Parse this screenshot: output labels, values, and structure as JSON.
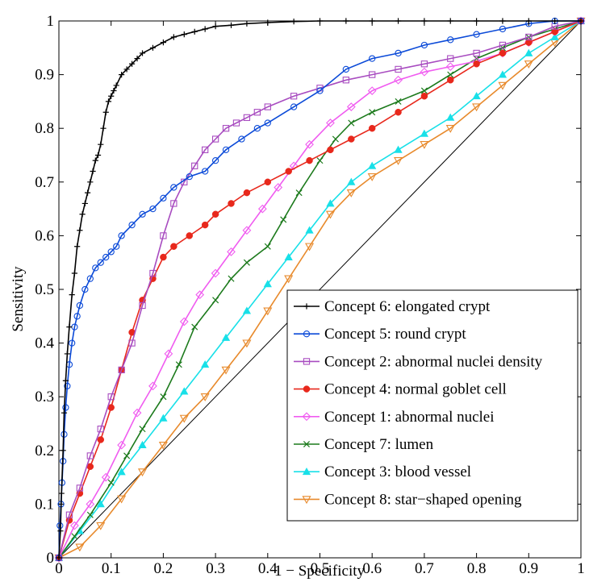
{
  "chart_data": {
    "type": "line",
    "title": "",
    "xlabel": "1 − Specificity",
    "ylabel": "Sensitivity",
    "xlim": [
      0,
      1
    ],
    "ylim": [
      0,
      1
    ],
    "x_ticks": [
      0,
      0.1,
      0.2,
      0.3,
      0.4,
      0.5,
      0.6,
      0.7,
      0.8,
      0.9,
      1
    ],
    "x_tick_labels": [
      "0",
      "0.1",
      "0.2",
      "0.3",
      "0.4",
      "0.5",
      "0.6",
      "0.7",
      "0.8",
      "0.9",
      "1"
    ],
    "y_ticks": [
      0,
      0.1,
      0.2,
      0.3,
      0.4,
      0.5,
      0.6,
      0.7,
      0.8,
      0.9,
      1
    ],
    "y_tick_labels": [
      "0",
      "0.1",
      "0.2",
      "0.3",
      "0.4",
      "0.5",
      "0.6",
      "0.7",
      "0.8",
      "0.9",
      "1"
    ],
    "grid": false,
    "legend_position": "bottom-right",
    "reference_line": {
      "x": [
        0,
        1
      ],
      "y": [
        0,
        1
      ],
      "color": "#000000"
    },
    "series": [
      {
        "name": "Concept 6: elongated crypt",
        "color": "#000000",
        "marker": "plus",
        "x": [
          0,
          0.003,
          0.005,
          0.008,
          0.01,
          0.013,
          0.016,
          0.02,
          0.025,
          0.03,
          0.035,
          0.04,
          0.045,
          0.05,
          0.055,
          0.06,
          0.065,
          0.07,
          0.075,
          0.08,
          0.085,
          0.09,
          0.095,
          0.1,
          0.105,
          0.11,
          0.12,
          0.13,
          0.14,
          0.15,
          0.16,
          0.18,
          0.2,
          0.22,
          0.24,
          0.26,
          0.28,
          0.3,
          0.33,
          0.36,
          0.4,
          0.45,
          0.5,
          0.55,
          0.6,
          0.65,
          0.7,
          0.75,
          0.8,
          0.85,
          0.9,
          0.95,
          1
        ],
        "y": [
          0,
          0.05,
          0.12,
          0.2,
          0.27,
          0.33,
          0.38,
          0.43,
          0.49,
          0.53,
          0.58,
          0.61,
          0.64,
          0.66,
          0.68,
          0.7,
          0.72,
          0.74,
          0.75,
          0.77,
          0.8,
          0.83,
          0.85,
          0.86,
          0.87,
          0.88,
          0.9,
          0.91,
          0.92,
          0.93,
          0.94,
          0.95,
          0.96,
          0.97,
          0.975,
          0.98,
          0.985,
          0.99,
          0.992,
          0.995,
          0.997,
          0.999,
          1,
          1,
          1,
          1,
          1,
          1,
          1,
          1,
          1,
          1,
          1
        ]
      },
      {
        "name": "Concept 5: round crypt",
        "color": "#0b4ad8",
        "marker": "circle",
        "x": [
          0,
          0.002,
          0.004,
          0.006,
          0.008,
          0.01,
          0.013,
          0.016,
          0.02,
          0.025,
          0.03,
          0.035,
          0.04,
          0.05,
          0.06,
          0.07,
          0.08,
          0.09,
          0.1,
          0.11,
          0.12,
          0.14,
          0.16,
          0.18,
          0.2,
          0.22,
          0.25,
          0.28,
          0.3,
          0.32,
          0.35,
          0.38,
          0.4,
          0.45,
          0.5,
          0.55,
          0.6,
          0.65,
          0.7,
          0.75,
          0.8,
          0.85,
          0.9,
          0.95,
          1
        ],
        "y": [
          0,
          0.06,
          0.1,
          0.14,
          0.18,
          0.23,
          0.28,
          0.32,
          0.36,
          0.4,
          0.43,
          0.45,
          0.47,
          0.5,
          0.52,
          0.54,
          0.55,
          0.56,
          0.57,
          0.58,
          0.6,
          0.62,
          0.64,
          0.65,
          0.67,
          0.69,
          0.71,
          0.72,
          0.74,
          0.76,
          0.78,
          0.8,
          0.81,
          0.84,
          0.87,
          0.91,
          0.93,
          0.94,
          0.955,
          0.965,
          0.975,
          0.985,
          0.995,
          1,
          1
        ]
      },
      {
        "name": "Concept 2: abnormal nuclei density",
        "color": "#a84cc0",
        "marker": "square",
        "x": [
          0,
          0.02,
          0.04,
          0.06,
          0.08,
          0.1,
          0.12,
          0.14,
          0.16,
          0.18,
          0.2,
          0.22,
          0.24,
          0.26,
          0.28,
          0.3,
          0.32,
          0.34,
          0.36,
          0.38,
          0.4,
          0.45,
          0.5,
          0.55,
          0.6,
          0.65,
          0.7,
          0.75,
          0.8,
          0.85,
          0.9,
          0.95,
          1
        ],
        "y": [
          0,
          0.08,
          0.13,
          0.19,
          0.24,
          0.3,
          0.35,
          0.4,
          0.47,
          0.53,
          0.6,
          0.66,
          0.7,
          0.73,
          0.76,
          0.78,
          0.8,
          0.81,
          0.82,
          0.83,
          0.84,
          0.86,
          0.875,
          0.89,
          0.9,
          0.91,
          0.92,
          0.93,
          0.94,
          0.955,
          0.97,
          0.99,
          1
        ]
      },
      {
        "name": "Concept 4: normal goblet cell",
        "color": "#e8281c",
        "marker": "dot",
        "x": [
          0,
          0.02,
          0.04,
          0.06,
          0.08,
          0.1,
          0.12,
          0.14,
          0.16,
          0.18,
          0.2,
          0.22,
          0.25,
          0.28,
          0.3,
          0.33,
          0.36,
          0.4,
          0.44,
          0.48,
          0.52,
          0.56,
          0.6,
          0.65,
          0.7,
          0.75,
          0.8,
          0.85,
          0.9,
          0.95,
          1
        ],
        "y": [
          0,
          0.07,
          0.12,
          0.17,
          0.22,
          0.28,
          0.35,
          0.42,
          0.48,
          0.52,
          0.56,
          0.58,
          0.6,
          0.62,
          0.64,
          0.66,
          0.68,
          0.7,
          0.72,
          0.74,
          0.76,
          0.78,
          0.8,
          0.83,
          0.86,
          0.89,
          0.92,
          0.94,
          0.96,
          0.98,
          1
        ]
      },
      {
        "name": "Concept 1: abnormal nuclei",
        "color": "#f05cf0",
        "marker": "diamond",
        "x": [
          0,
          0.03,
          0.06,
          0.09,
          0.12,
          0.15,
          0.18,
          0.21,
          0.24,
          0.27,
          0.3,
          0.33,
          0.36,
          0.39,
          0.42,
          0.45,
          0.48,
          0.52,
          0.56,
          0.6,
          0.65,
          0.7,
          0.75,
          0.8,
          0.85,
          0.9,
          0.95,
          1
        ],
        "y": [
          0,
          0.06,
          0.1,
          0.15,
          0.21,
          0.27,
          0.32,
          0.38,
          0.44,
          0.49,
          0.53,
          0.57,
          0.61,
          0.65,
          0.69,
          0.73,
          0.77,
          0.81,
          0.84,
          0.87,
          0.89,
          0.905,
          0.915,
          0.925,
          0.94,
          0.96,
          0.98,
          1
        ]
      },
      {
        "name": "Concept 7: lumen",
        "color": "#1c7a1c",
        "marker": "x",
        "x": [
          0,
          0.03,
          0.06,
          0.1,
          0.13,
          0.16,
          0.2,
          0.23,
          0.26,
          0.3,
          0.33,
          0.36,
          0.4,
          0.43,
          0.46,
          0.5,
          0.53,
          0.56,
          0.6,
          0.65,
          0.7,
          0.75,
          0.8,
          0.85,
          0.9,
          0.95,
          1
        ],
        "y": [
          0,
          0.04,
          0.08,
          0.14,
          0.19,
          0.24,
          0.3,
          0.36,
          0.43,
          0.48,
          0.52,
          0.55,
          0.58,
          0.63,
          0.68,
          0.74,
          0.78,
          0.81,
          0.83,
          0.85,
          0.87,
          0.9,
          0.93,
          0.95,
          0.97,
          0.985,
          1
        ]
      },
      {
        "name": "Concept 3: blood vessel",
        "color": "#18e0e8",
        "marker": "triangle-up",
        "x": [
          0,
          0.04,
          0.08,
          0.12,
          0.16,
          0.2,
          0.24,
          0.28,
          0.32,
          0.36,
          0.4,
          0.44,
          0.48,
          0.52,
          0.56,
          0.6,
          0.65,
          0.7,
          0.75,
          0.8,
          0.85,
          0.9,
          0.95,
          1
        ],
        "y": [
          0,
          0.05,
          0.1,
          0.16,
          0.21,
          0.26,
          0.31,
          0.36,
          0.41,
          0.46,
          0.51,
          0.56,
          0.61,
          0.66,
          0.7,
          0.73,
          0.76,
          0.79,
          0.82,
          0.86,
          0.9,
          0.94,
          0.97,
          1
        ]
      },
      {
        "name": "Concept 8: star−shaped opening",
        "color": "#e88a2c",
        "marker": "triangle-down",
        "x": [
          0,
          0.04,
          0.08,
          0.12,
          0.16,
          0.2,
          0.24,
          0.28,
          0.32,
          0.36,
          0.4,
          0.44,
          0.48,
          0.52,
          0.56,
          0.6,
          0.65,
          0.7,
          0.75,
          0.8,
          0.85,
          0.9,
          0.95,
          1
        ],
        "y": [
          0,
          0.02,
          0.06,
          0.11,
          0.16,
          0.21,
          0.26,
          0.3,
          0.35,
          0.4,
          0.46,
          0.52,
          0.58,
          0.64,
          0.68,
          0.71,
          0.74,
          0.77,
          0.8,
          0.84,
          0.88,
          0.92,
          0.96,
          1
        ]
      }
    ]
  }
}
